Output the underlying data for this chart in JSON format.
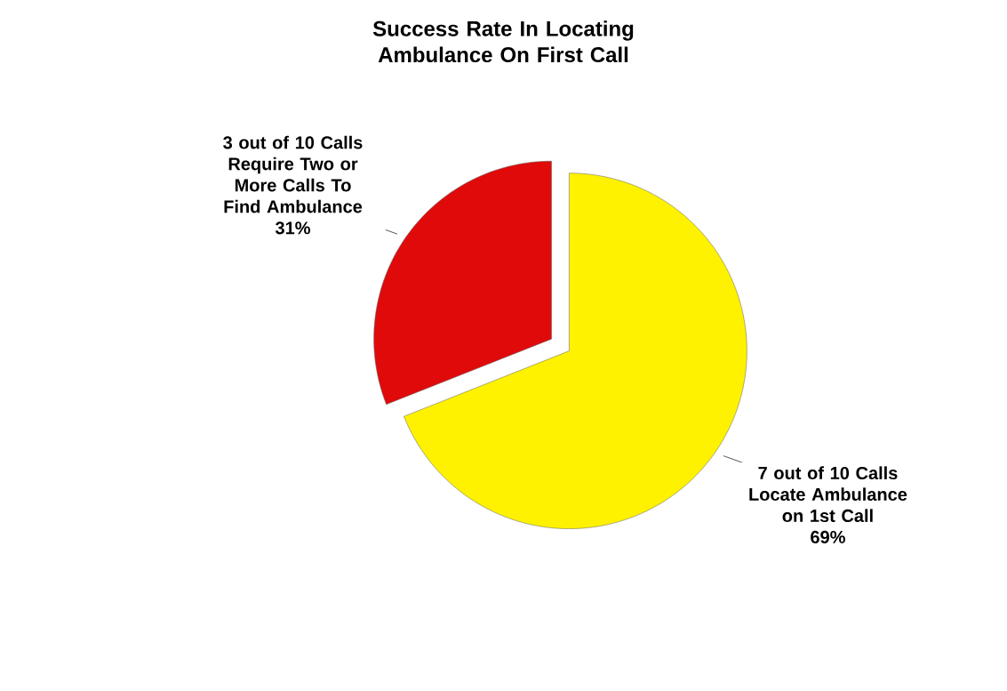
{
  "chart_data": {
    "type": "pie",
    "title": "Success Rate In Locating Ambulance On First Call",
    "categories": [
      "7 out of 10 Calls Locate Ambulance on 1st Call",
      "3 out of 10 Calls Require Two or More Calls To Find Ambulance"
    ],
    "values": [
      69,
      31
    ],
    "value_labels": [
      "69%",
      "31%"
    ],
    "colors": [
      "#fff200",
      "#e00a0a"
    ]
  }
}
